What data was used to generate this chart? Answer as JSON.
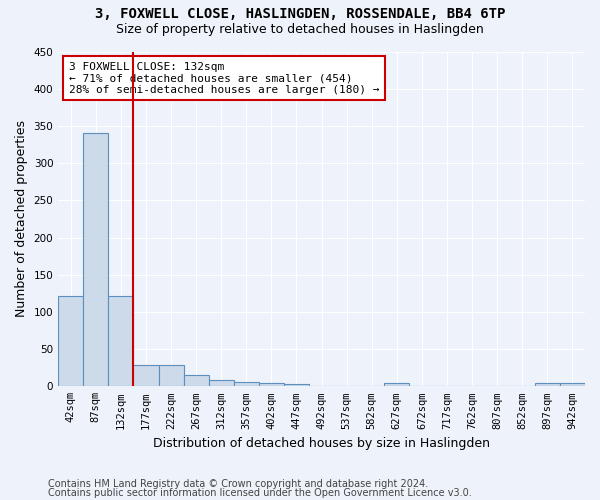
{
  "title_line1": "3, FOXWELL CLOSE, HASLINGDEN, ROSSENDALE, BB4 6TP",
  "title_line2": "Size of property relative to detached houses in Haslingden",
  "xlabel": "Distribution of detached houses by size in Haslingden",
  "ylabel": "Number of detached properties",
  "bar_values": [
    122,
    340,
    122,
    29,
    29,
    15,
    9,
    6,
    4,
    3,
    0,
    0,
    0,
    5,
    0,
    0,
    0,
    0,
    0,
    5,
    4
  ],
  "bin_labels": [
    "42sqm",
    "87sqm",
    "132sqm",
    "177sqm",
    "222sqm",
    "267sqm",
    "312sqm",
    "357sqm",
    "402sqm",
    "447sqm",
    "492sqm",
    "537sqm",
    "582sqm",
    "627sqm",
    "672sqm",
    "717sqm",
    "762sqm",
    "807sqm",
    "852sqm",
    "897sqm",
    "942sqm"
  ],
  "bar_color": "#ccdaea",
  "bar_edge_color": "#5a8fbf",
  "highlight_line_index": 2,
  "highlight_line_color": "#cc0000",
  "annotation_text": "3 FOXWELL CLOSE: 132sqm\n← 71% of detached houses are smaller (454)\n28% of semi-detached houses are larger (180) →",
  "annotation_box_color": "#cc0000",
  "annotation_text_color": "black",
  "annotation_box_fill": "white",
  "ylim": [
    0,
    450
  ],
  "yticks": [
    0,
    50,
    100,
    150,
    200,
    250,
    300,
    350,
    400,
    450
  ],
  "background_color": "#eef2fa",
  "grid_color": "#ffffff",
  "footer_line1": "Contains HM Land Registry data © Crown copyright and database right 2024.",
  "footer_line2": "Contains public sector information licensed under the Open Government Licence v3.0.",
  "title_fontsize": 10,
  "subtitle_fontsize": 9,
  "xlabel_fontsize": 9,
  "ylabel_fontsize": 9,
  "tick_fontsize": 7.5,
  "footer_fontsize": 7
}
